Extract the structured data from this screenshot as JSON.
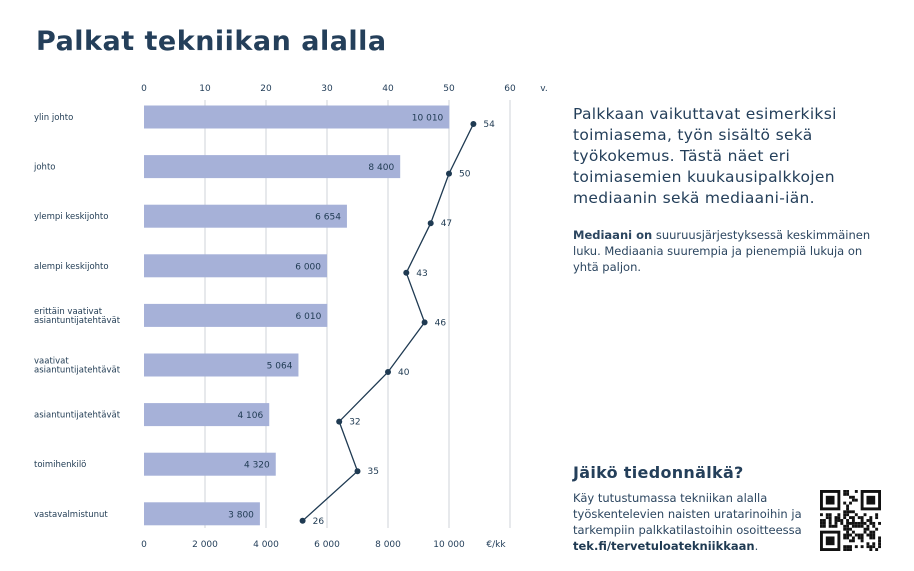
{
  "title": "Palkat tekniikan alalla",
  "side": {
    "lead": "Palkkaan vaikuttavat esimerkiksi toimiasema, työn sisältö sekä työkokemus. Tästä näet eri toimiasemien kuukausipalkkojen mediaanin sekä mediaani-iän.",
    "note_bold": "Mediaani on",
    "note_rest": " suuruusjärjestyksessä keskimmäinen luku. Mediaania suurempia ja pienempiä lukuja on yhtä paljon."
  },
  "footer": {
    "heading": "Jäikö tiedonnälkä?",
    "text": "Käy tutustumassa tekniikan alalla työskentelevien naisten uratarinoihin ja tarkempiin palkkatilastoihin osoitteessa ",
    "link": "tek.fi/tervetuloatekniikkaan",
    "period": "."
  },
  "qr_icon": "qr-code-icon",
  "chart_data": {
    "type": "bar",
    "orientation": "horizontal",
    "categories": [
      [
        "ylin johto"
      ],
      [
        "johto"
      ],
      [
        "ylempi keskijohto"
      ],
      [
        "alempi keskijohto"
      ],
      [
        "erittäin vaativat",
        "asiantuntijatehtävät"
      ],
      [
        "vaativat",
        "asiantuntijatehtävät"
      ],
      [
        "asiantuntijatehtävät"
      ],
      [
        "toimihenkilö"
      ],
      [
        "vastavalmistunut"
      ]
    ],
    "series": [
      {
        "values": [
          10010,
          8400,
          6654,
          6000,
          6010,
          5064,
          4106,
          4320,
          3800
        ],
        "labels": [
          "10 010",
          "8 400",
          "6 654",
          "6 000",
          "6 010",
          "5 064",
          "4 106",
          "4 320",
          "3 800"
        ],
        "axis": "bottom",
        "color": "#a6b1d8"
      },
      {
        "values": [
          54,
          50,
          47,
          43,
          46,
          40,
          32,
          35,
          26
        ],
        "axis": "top",
        "color": "#1f3a52",
        "marker": "line-with-points"
      }
    ],
    "bottom_axis": {
      "ticks": [
        0,
        2000,
        4000,
        6000,
        8000,
        10000
      ],
      "tick_labels": [
        "0",
        "2 000",
        "4 000",
        "6 000",
        "8 000",
        "10 000"
      ],
      "unit": "€/kk",
      "range": [
        0,
        12000
      ]
    },
    "top_axis": {
      "ticks": [
        0,
        10,
        20,
        30,
        40,
        50,
        60
      ],
      "tick_labels": [
        "0",
        "10",
        "20",
        "30",
        "40",
        "50",
        "60"
      ],
      "unit": "v.",
      "range": [
        0,
        60
      ]
    },
    "grid": true
  }
}
